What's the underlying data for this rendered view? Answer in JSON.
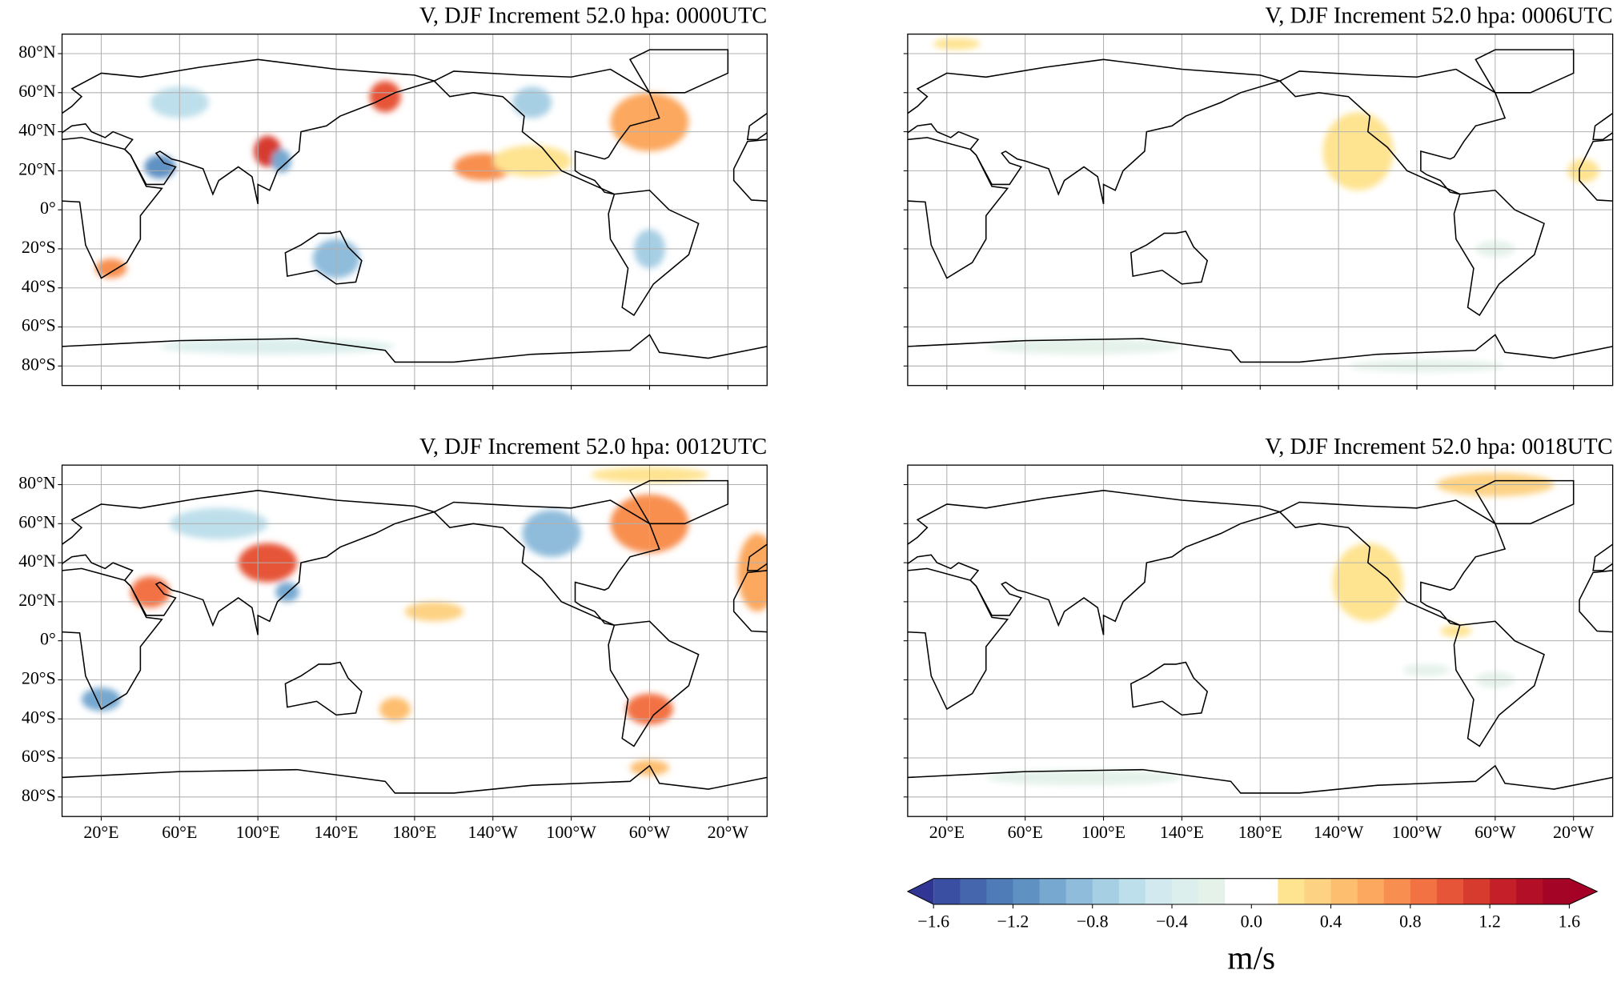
{
  "panels": [
    {
      "title": "V, DJF Increment 52.0 hpa: 0000UTC"
    },
    {
      "title": "V, DJF Increment 52.0 hpa: 0006UTC"
    },
    {
      "title": "V, DJF Increment 52.0 hpa: 0012UTC"
    },
    {
      "title": "V, DJF Increment 52.0 hpa: 0018UTC"
    }
  ],
  "lat_lim": [
    -90,
    90
  ],
  "lon_lim": [
    0,
    360
  ],
  "lat_ticks": [
    {
      "value": 80,
      "label": "80°N"
    },
    {
      "value": 60,
      "label": "60°N"
    },
    {
      "value": 40,
      "label": "40°N"
    },
    {
      "value": 20,
      "label": "20°N"
    },
    {
      "value": 0,
      "label": "0°"
    },
    {
      "value": -20,
      "label": "20°S"
    },
    {
      "value": -40,
      "label": "40°S"
    },
    {
      "value": -60,
      "label": "60°S"
    },
    {
      "value": -80,
      "label": "80°S"
    }
  ],
  "lon_ticks": [
    {
      "value": 20,
      "label": "20°E"
    },
    {
      "value": 60,
      "label": "60°E"
    },
    {
      "value": 100,
      "label": "100°E"
    },
    {
      "value": 140,
      "label": "140°E"
    },
    {
      "value": 180,
      "label": "180°E"
    },
    {
      "value": 220,
      "label": "140°W"
    },
    {
      "value": 260,
      "label": "100°W"
    },
    {
      "value": 300,
      "label": "60°W"
    },
    {
      "value": 340,
      "label": "20°W"
    }
  ],
  "colorbar": {
    "label": "m/s",
    "lim": [
      -1.6,
      1.6
    ],
    "ticks": [
      {
        "value": -1.6,
        "label": "−1.6"
      },
      {
        "value": -1.2,
        "label": "−1.2"
      },
      {
        "value": -0.8,
        "label": "−0.8"
      },
      {
        "value": -0.4,
        "label": "−0.4"
      },
      {
        "value": 0.0,
        "label": "0.0"
      },
      {
        "value": 0.4,
        "label": "0.4"
      },
      {
        "value": 0.8,
        "label": "0.8"
      },
      {
        "value": 1.2,
        "label": "1.2"
      },
      {
        "value": 1.6,
        "label": "1.6"
      }
    ],
    "colors": [
      "#3a4fa2",
      "#4565ac",
      "#4f7bb7",
      "#5f91c3",
      "#76a8d0",
      "#8fbcdb",
      "#a7cfe4",
      "#bddfeb",
      "#d2e9ef",
      "#dcefec",
      "#e4f2ea",
      "#ffffff",
      "#ffffff",
      "#fee390",
      "#fdd283",
      "#fdbe70",
      "#fca85f",
      "#f88f50",
      "#f27244",
      "#e65538",
      "#d73b2e",
      "#c52029",
      "#b30f26",
      "#a40526"
    ],
    "under_color": "#313695",
    "over_color": "#a50026"
  }
}
